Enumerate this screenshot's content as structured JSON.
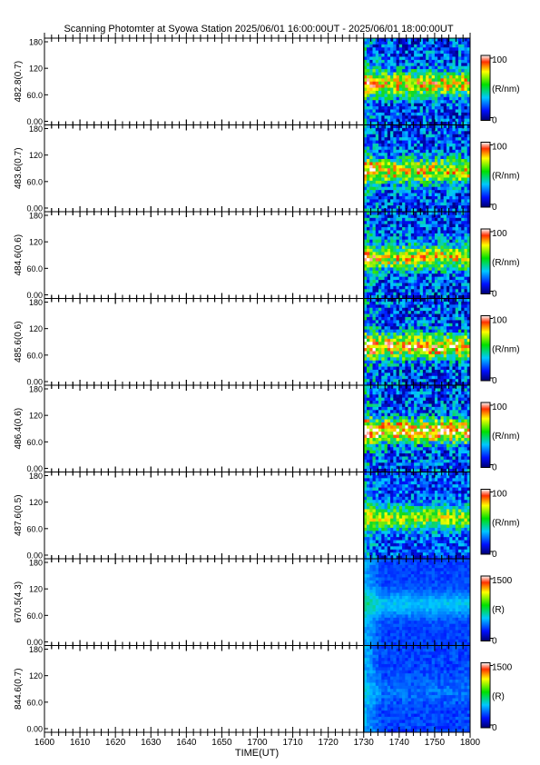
{
  "title": "Scanning Photomter at Syowa Station 2025/06/01 16:00:00UT - 2025/06/01 18:00:00UT",
  "colors": {
    "axis": "#000000",
    "background": "#ffffff",
    "data_low": "#0a1fd8",
    "data_band": "#30e030",
    "data_high": "#e81010"
  },
  "chart_data": {
    "type": "heatmap",
    "title": "Scanning Photomter at Syowa Station 2025/06/01 16:00:00UT - 2025/06/01 18:00:00UT",
    "xlabel": "TIME(UT)",
    "xlim": [
      1600,
      1800
    ],
    "x_tick_labels": [
      "1600",
      "1610",
      "1620",
      "1630",
      "1640",
      "1650",
      "1700",
      "1710",
      "1720",
      "1730",
      "1740",
      "1750",
      "1800"
    ],
    "y_tick_labels": [
      "0.00",
      "60.0",
      "120",
      "180"
    ],
    "ylim": [
      0,
      180
    ],
    "data_start": 1730,
    "panels": [
      {
        "ylabel": "482.8(0.7)",
        "band_y": 85,
        "band_strength": 0.55,
        "noise": 0.45,
        "colorbar": {
          "min": "0",
          "max": "100",
          "unit": "(R/nm)"
        }
      },
      {
        "ylabel": "483.6(0.7)",
        "band_y": 85,
        "band_strength": 0.55,
        "noise": 0.45,
        "colorbar": {
          "min": "0",
          "max": "100",
          "unit": "(R/nm)"
        }
      },
      {
        "ylabel": "484.6(0.6)",
        "band_y": 85,
        "band_strength": 0.5,
        "noise": 0.45,
        "colorbar": {
          "min": "0",
          "max": "100",
          "unit": "(R/nm)"
        }
      },
      {
        "ylabel": "485.6(0.6)",
        "band_y": 80,
        "band_strength": 0.6,
        "noise": 0.5,
        "colorbar": {
          "min": "0",
          "max": "100",
          "unit": "(R/nm)"
        }
      },
      {
        "ylabel": "486.4(0.6)",
        "band_y": 85,
        "band_strength": 0.65,
        "noise": 0.5,
        "colorbar": {
          "min": "0",
          "max": "100",
          "unit": "(R/nm)"
        }
      },
      {
        "ylabel": "487.6(0.5)",
        "band_y": 85,
        "band_strength": 0.45,
        "noise": 0.35,
        "colorbar": {
          "min": "0",
          "max": "100",
          "unit": "(R/nm)"
        }
      },
      {
        "ylabel": "670.5(4.3)",
        "band_y": 85,
        "band_strength": 0.15,
        "noise": 0.08,
        "colorbar": {
          "min": "0",
          "max": "1500",
          "unit": "(R)"
        }
      },
      {
        "ylabel": "844.6(0.7)",
        "band_y": 85,
        "band_strength": 0.05,
        "noise": 0.1,
        "colorbar": {
          "min": "0",
          "max": "1500",
          "unit": "(R)"
        }
      }
    ]
  }
}
